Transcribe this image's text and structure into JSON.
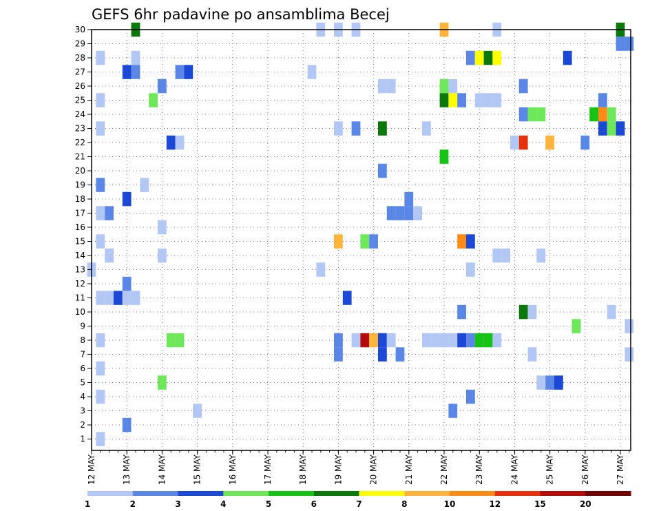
{
  "chart_data": {
    "type": "heatmap",
    "title": "GEFS 6hr padavine po ansamblima Becej",
    "xlabel": "",
    "ylabel": "",
    "grid": true,
    "x_ticks": [
      "12 MAY",
      "13 MAY",
      "14 MAY",
      "15 MAY",
      "16 MAY",
      "17 MAY",
      "18 MAY",
      "19 MAY",
      "20 MAY",
      "21 MAY",
      "22 MAY",
      "23 MAY",
      "24 MAY",
      "25 MAY",
      "26 MAY",
      "27 MAY"
    ],
    "x_unit": "6-hour steps from 12 MAY 00Z",
    "x_range": [
      0,
      61
    ],
    "y_range": [
      0,
      30
    ],
    "y_ticks": [
      1,
      2,
      3,
      4,
      5,
      6,
      7,
      8,
      9,
      10,
      11,
      12,
      13,
      14,
      15,
      16,
      17,
      18,
      19,
      20,
      21,
      22,
      23,
      24,
      25,
      26,
      27,
      28,
      29,
      30
    ],
    "colorbar": {
      "labels": [
        "1",
        "2",
        "3",
        "4",
        "5",
        "6",
        "7",
        "8",
        "10",
        "12",
        "15",
        "20"
      ],
      "colors": [
        "#b3c7f5",
        "#5a86e6",
        "#1c48d6",
        "#6ee85a",
        "#17c217",
        "#0b780b",
        "#ffff00",
        "#ffb43c",
        "#ff8a16",
        "#e6320c",
        "#b20c0c",
        "#6e0606"
      ]
    },
    "cells": [
      [
        35,
        30,
        "#0b780b"
      ],
      [
        56,
        30,
        "#b3c7f5"
      ],
      [
        58,
        30,
        "#b3c7f5"
      ],
      [
        60,
        30,
        "#b3c7f5"
      ],
      [
        70,
        30,
        "#ffb43c"
      ],
      [
        76,
        30,
        "#b3c7f5"
      ],
      [
        90,
        30,
        "#0b780b"
      ],
      [
        90,
        29,
        "#5a86e6"
      ],
      [
        91,
        29,
        "#5a86e6"
      ],
      [
        31,
        28,
        "#b3c7f5"
      ],
      [
        35,
        28,
        "#b3c7f5"
      ],
      [
        73,
        28,
        "#5a86e6"
      ],
      [
        74,
        28,
        "#ffff00"
      ],
      [
        75,
        28,
        "#0b780b"
      ],
      [
        76,
        28,
        "#ffff00"
      ],
      [
        84,
        28,
        "#1c48d6"
      ],
      [
        34,
        27,
        "#1c48d6"
      ],
      [
        35,
        27,
        "#5a86e6"
      ],
      [
        40,
        27,
        "#5a86e6"
      ],
      [
        41,
        27,
        "#1c48d6"
      ],
      [
        55,
        27,
        "#b3c7f5"
      ],
      [
        38,
        26,
        "#5a86e6"
      ],
      [
        63,
        26,
        "#b3c7f5"
      ],
      [
        64,
        26,
        "#b3c7f5"
      ],
      [
        70,
        26,
        "#6ee85a"
      ],
      [
        71,
        26,
        "#b3c7f5"
      ],
      [
        79,
        26,
        "#5a86e6"
      ],
      [
        31,
        25,
        "#b3c7f5"
      ],
      [
        37,
        25,
        "#6ee85a"
      ],
      [
        70,
        25,
        "#0b780b"
      ],
      [
        71,
        25,
        "#ffff00"
      ],
      [
        72,
        25,
        "#5a86e6"
      ],
      [
        74,
        25,
        "#b3c7f5"
      ],
      [
        75,
        25,
        "#b3c7f5"
      ],
      [
        76,
        25,
        "#b3c7f5"
      ],
      [
        88,
        25,
        "#5a86e6"
      ],
      [
        79,
        24,
        "#5a86e6"
      ],
      [
        80,
        24,
        "#6ee85a"
      ],
      [
        81,
        24,
        "#6ee85a"
      ],
      [
        87,
        24,
        "#17c217"
      ],
      [
        88,
        24,
        "#ff8a16"
      ],
      [
        89,
        24,
        "#6ee85a"
      ],
      [
        31,
        23,
        "#b3c7f5"
      ],
      [
        58,
        23,
        "#b3c7f5"
      ],
      [
        60,
        23,
        "#5a86e6"
      ],
      [
        63,
        23,
        "#0b780b"
      ],
      [
        68,
        23,
        "#b3c7f5"
      ],
      [
        88,
        23,
        "#1c48d6"
      ],
      [
        89,
        23,
        "#6ee85a"
      ],
      [
        90,
        23,
        "#1c48d6"
      ],
      [
        39,
        22,
        "#1c48d6"
      ],
      [
        40,
        22,
        "#b3c7f5"
      ],
      [
        78,
        22,
        "#b3c7f5"
      ],
      [
        79,
        22,
        "#e6320c"
      ],
      [
        82,
        22,
        "#ffb43c"
      ],
      [
        86,
        22,
        "#5a86e6"
      ],
      [
        70,
        21,
        "#17c217"
      ],
      [
        63,
        20,
        "#5a86e6"
      ],
      [
        31,
        19,
        "#5a86e6"
      ],
      [
        36,
        19,
        "#b3c7f5"
      ],
      [
        34,
        18,
        "#1c48d6"
      ],
      [
        66,
        18,
        "#5a86e6"
      ],
      [
        31,
        17,
        "#b3c7f5"
      ],
      [
        32,
        17,
        "#5a86e6"
      ],
      [
        64,
        17,
        "#5a86e6"
      ],
      [
        65,
        17,
        "#5a86e6"
      ],
      [
        66,
        17,
        "#5a86e6"
      ],
      [
        67,
        17,
        "#b3c7f5"
      ],
      [
        38,
        16,
        "#b3c7f5"
      ],
      [
        31,
        15,
        "#b3c7f5"
      ],
      [
        58,
        15,
        "#ffb43c"
      ],
      [
        61,
        15,
        "#6ee85a"
      ],
      [
        62,
        15,
        "#5a86e6"
      ],
      [
        72,
        15,
        "#ff8a16"
      ],
      [
        73,
        15,
        "#1c48d6"
      ],
      [
        32,
        14,
        "#b3c7f5"
      ],
      [
        38,
        14,
        "#b3c7f5"
      ],
      [
        76,
        14,
        "#b3c7f5"
      ],
      [
        77,
        14,
        "#b3c7f5"
      ],
      [
        81,
        14,
        "#b3c7f5"
      ],
      [
        30,
        13,
        "#b3c7f5"
      ],
      [
        56,
        13,
        "#b3c7f5"
      ],
      [
        73,
        13,
        "#b3c7f5"
      ],
      [
        34,
        12,
        "#5a86e6"
      ],
      [
        31,
        11,
        "#b3c7f5"
      ],
      [
        32,
        11,
        "#b3c7f5"
      ],
      [
        33,
        11,
        "#1c48d6"
      ],
      [
        34,
        11,
        "#b3c7f5"
      ],
      [
        35,
        11,
        "#b3c7f5"
      ],
      [
        59,
        11,
        "#1c48d6"
      ],
      [
        72,
        10,
        "#5a86e6"
      ],
      [
        79,
        10,
        "#0b780b"
      ],
      [
        80,
        10,
        "#b3c7f5"
      ],
      [
        89,
        10,
        "#b3c7f5"
      ],
      [
        85,
        9,
        "#6ee85a"
      ],
      [
        91,
        9,
        "#b3c7f5"
      ],
      [
        31,
        8,
        "#b3c7f5"
      ],
      [
        39,
        8,
        "#6ee85a"
      ],
      [
        40,
        8,
        "#6ee85a"
      ],
      [
        58,
        8,
        "#5a86e6"
      ],
      [
        60,
        8,
        "#b3c7f5"
      ],
      [
        61,
        8,
        "#b20c0c"
      ],
      [
        62,
        8,
        "#ffb43c"
      ],
      [
        63,
        8,
        "#1c48d6"
      ],
      [
        64,
        8,
        "#b3c7f5"
      ],
      [
        68,
        8,
        "#b3c7f5"
      ],
      [
        69,
        8,
        "#b3c7f5"
      ],
      [
        70,
        8,
        "#b3c7f5"
      ],
      [
        71,
        8,
        "#b3c7f5"
      ],
      [
        72,
        8,
        "#1c48d6"
      ],
      [
        73,
        8,
        "#5a86e6"
      ],
      [
        74,
        8,
        "#17c217"
      ],
      [
        75,
        8,
        "#17c217"
      ],
      [
        76,
        8,
        "#b3c7f5"
      ],
      [
        58,
        7,
        "#5a86e6"
      ],
      [
        63,
        7,
        "#1c48d6"
      ],
      [
        65,
        7,
        "#5a86e6"
      ],
      [
        80,
        7,
        "#b3c7f5"
      ],
      [
        91,
        7,
        "#b3c7f5"
      ],
      [
        31,
        6,
        "#b3c7f5"
      ],
      [
        38,
        5,
        "#6ee85a"
      ],
      [
        81,
        5,
        "#b3c7f5"
      ],
      [
        82,
        5,
        "#5a86e6"
      ],
      [
        83,
        5,
        "#1c48d6"
      ],
      [
        31,
        4,
        "#b3c7f5"
      ],
      [
        73,
        4,
        "#5a86e6"
      ],
      [
        42,
        3,
        "#b3c7f5"
      ],
      [
        71,
        3,
        "#5a86e6"
      ],
      [
        34,
        2,
        "#5a86e6"
      ],
      [
        31,
        1,
        "#b3c7f5"
      ]
    ]
  }
}
